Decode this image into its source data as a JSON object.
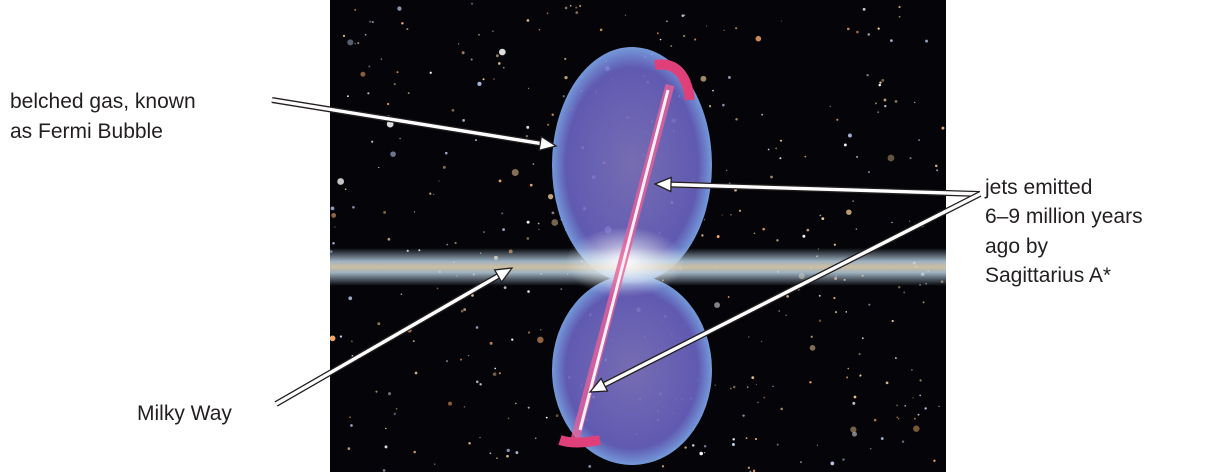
{
  "labels": {
    "fermi_bubble": [
      "belched gas, known",
      "as Fermi Bubble"
    ],
    "milky_way": [
      "Milky Way"
    ],
    "jets": [
      "jets emitted",
      "6–9 million years",
      "ago by",
      "Sagittarius A*"
    ]
  }
}
